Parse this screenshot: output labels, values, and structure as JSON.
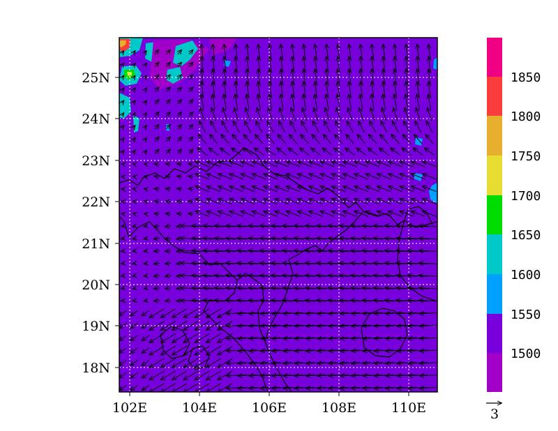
{
  "chart_data": {
    "type": "heatmap",
    "title": "",
    "xlabel": "",
    "ylabel": "",
    "xlim": [
      101.7,
      110.8
    ],
    "ylim": [
      17.4,
      25.95
    ],
    "x_ticks": [
      102,
      104,
      106,
      108,
      110
    ],
    "x_tick_labels": [
      "102E",
      "104E",
      "106E",
      "108E",
      "110E"
    ],
    "y_ticks": [
      18,
      19,
      20,
      21,
      22,
      23,
      24,
      25
    ],
    "y_tick_labels": [
      "18N",
      "19N",
      "20N",
      "21N",
      "22N",
      "23N",
      "24N",
      "25N"
    ],
    "grid": true,
    "background_value_range": [
      1500,
      1550
    ],
    "colorbar": {
      "levels": [
        1500,
        1550,
        1600,
        1650,
        1700,
        1750,
        1800,
        1850
      ],
      "tick_labels": [
        "1500",
        "1550",
        "1600",
        "1650",
        "1700",
        "1750",
        "1800",
        "1850"
      ],
      "colors": [
        "#a000c8",
        "#7800dc",
        "#00a0ff",
        "#00c8c8",
        "#00dc00",
        "#e6dc32",
        "#e6af2d",
        "#fa3c3c",
        "#f00082"
      ]
    },
    "contour_patches": [
      {
        "lon": 101.8,
        "lat": 25.7,
        "value_range": [
          1800,
          1850
        ]
      },
      {
        "lon": 102.0,
        "lat": 25.1,
        "value_range": [
          1650,
          1700
        ]
      },
      {
        "lon": 101.9,
        "lat": 24.4,
        "value_range": [
          1550,
          1600
        ]
      },
      {
        "lon": 103.2,
        "lat": 25.7,
        "value_range": [
          1550,
          1600
        ]
      },
      {
        "lon": 104.3,
        "lat": 25.7,
        "value_range": [
          1550,
          1600
        ]
      },
      {
        "lon": 110.7,
        "lat": 22.2,
        "value_range": [
          1550,
          1600
        ]
      },
      {
        "lon": 110.2,
        "lat": 23.4,
        "value_range": [
          1550,
          1600
        ]
      }
    ],
    "wind_vectors": {
      "reference_vector": {
        "magnitude": 3,
        "label": "3"
      },
      "grid_spacing_deg": 0.25,
      "regimes": [
        {
          "region": "north",
          "direction": "northward",
          "speed": 2.5
        },
        {
          "region": "center-south",
          "direction": "westward",
          "speed": 4
        },
        {
          "region": "southwest",
          "direction": "southwestward",
          "speed": 3.5
        },
        {
          "region": "northwest",
          "direction": "northeastward",
          "speed": 1
        }
      ]
    }
  }
}
